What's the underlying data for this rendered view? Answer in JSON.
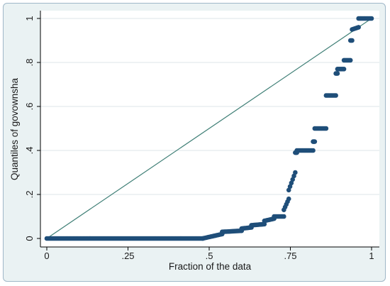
{
  "chart_data": {
    "type": "scatter",
    "xlabel": "Fraction of the data",
    "ylabel": "Quantiles of govownsha",
    "xlim": [
      0,
      1
    ],
    "ylim": [
      0,
      1
    ],
    "xticks": [
      {
        "value": 0,
        "label": "0"
      },
      {
        "value": 0.25,
        "label": ".25"
      },
      {
        "value": 0.5,
        "label": ".5"
      },
      {
        "value": 0.75,
        "label": ".75"
      },
      {
        "value": 1,
        "label": "1"
      }
    ],
    "yticks": [
      {
        "value": 0,
        "label": "0"
      },
      {
        "value": 0.2,
        "label": ".2"
      },
      {
        "value": 0.4,
        "label": ".4"
      },
      {
        "value": 0.6,
        "label": ".6"
      },
      {
        "value": 0.8,
        "label": ".8"
      },
      {
        "value": 1,
        "label": "1"
      }
    ],
    "grid": "horizontal",
    "reference_line": {
      "from": [
        0,
        0
      ],
      "to": [
        1,
        1
      ],
      "color": "#3f7f76"
    },
    "marker_color": "#1f4e79",
    "segments": [
      {
        "x_from": 0.0,
        "x_to": 0.48,
        "y_from": 0.0,
        "y_to": 0.0
      },
      {
        "x_from": 0.48,
        "x_to": 0.54,
        "y_from": 0.0,
        "y_to": 0.02
      },
      {
        "x_from": 0.54,
        "x_to": 0.6,
        "y_from": 0.03,
        "y_to": 0.035
      },
      {
        "x_from": 0.6,
        "x_to": 0.63,
        "y_from": 0.045,
        "y_to": 0.05
      },
      {
        "x_from": 0.63,
        "x_to": 0.67,
        "y_from": 0.06,
        "y_to": 0.065
      },
      {
        "x_from": 0.67,
        "x_to": 0.7,
        "y_from": 0.08,
        "y_to": 0.09
      },
      {
        "x_from": 0.7,
        "x_to": 0.73,
        "y_from": 0.1,
        "y_to": 0.1
      },
      {
        "x_from": 0.73,
        "x_to": 0.745,
        "y_from": 0.13,
        "y_to": 0.18
      },
      {
        "x_from": 0.745,
        "x_to": 0.765,
        "y_from": 0.22,
        "y_to": 0.3
      },
      {
        "x_from": 0.765,
        "x_to": 0.77,
        "y_from": 0.39,
        "y_to": 0.39
      },
      {
        "x_from": 0.77,
        "x_to": 0.82,
        "y_from": 0.4,
        "y_to": 0.4
      },
      {
        "x_from": 0.82,
        "x_to": 0.825,
        "y_from": 0.44,
        "y_to": 0.44
      },
      {
        "x_from": 0.825,
        "x_to": 0.86,
        "y_from": 0.5,
        "y_to": 0.5
      },
      {
        "x_from": 0.86,
        "x_to": 0.89,
        "y_from": 0.65,
        "y_to": 0.65
      },
      {
        "x_from": 0.89,
        "x_to": 0.895,
        "y_from": 0.75,
        "y_to": 0.75
      },
      {
        "x_from": 0.895,
        "x_to": 0.915,
        "y_from": 0.77,
        "y_to": 0.77
      },
      {
        "x_from": 0.915,
        "x_to": 0.935,
        "y_from": 0.81,
        "y_to": 0.81
      },
      {
        "x_from": 0.935,
        "x_to": 0.94,
        "y_from": 0.9,
        "y_to": 0.9
      },
      {
        "x_from": 0.94,
        "x_to": 0.96,
        "y_from": 0.95,
        "y_to": 0.96
      },
      {
        "x_from": 0.96,
        "x_to": 1.0,
        "y_from": 1.0,
        "y_to": 1.0
      }
    ]
  }
}
